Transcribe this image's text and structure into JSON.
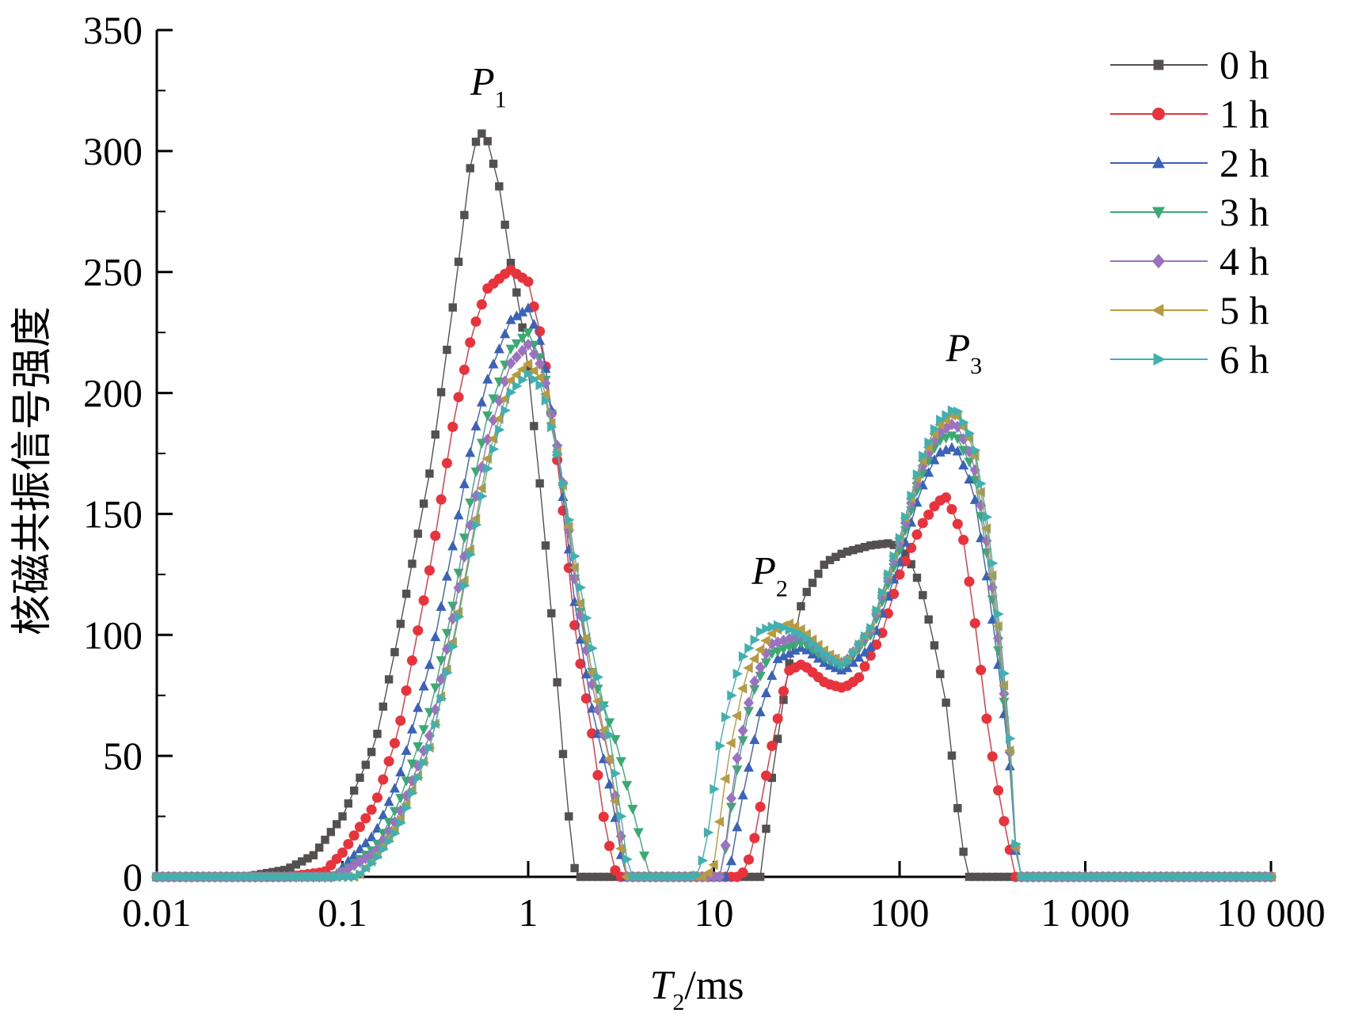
{
  "chart_data": {
    "type": "scatter",
    "xscale": "log",
    "xlim": [
      0.01,
      10000
    ],
    "ylim": [
      0,
      350
    ],
    "x_ticks": [
      0.01,
      0.1,
      1,
      10,
      100,
      1000,
      10000
    ],
    "x_tick_labels": [
      "0.01",
      "0.1",
      "1",
      "10",
      "100",
      "1 000",
      "10 000"
    ],
    "y_ticks": [
      0,
      50,
      100,
      150,
      200,
      250,
      300,
      350
    ],
    "y_tick_labels": [
      "0",
      "50",
      "100",
      "150",
      "200",
      "250",
      "300",
      "350"
    ],
    "xlabel": {
      "main": "T",
      "sub": "2",
      "suffix": "/ms"
    },
    "ylabel": "核磁共振信号强度",
    "legend_position": "top-right",
    "grid": false,
    "peaks": [
      {
        "letter": "P",
        "sub": "1",
        "x": 0.55,
        "y": 320
      },
      {
        "letter": "P",
        "sub": "2",
        "x": 18,
        "y": 118
      },
      {
        "letter": "P",
        "sub": "3",
        "x": 200,
        "y": 210
      }
    ],
    "series": [
      {
        "name": "0 h",
        "color": "#555050",
        "marker": "square",
        "points": [
          [
            0.01,
            0
          ],
          [
            0.03,
            0
          ],
          [
            0.05,
            3
          ],
          [
            0.07,
            9
          ],
          [
            0.1,
            25
          ],
          [
            0.15,
            55
          ],
          [
            0.2,
            100
          ],
          [
            0.3,
            170
          ],
          [
            0.4,
            240
          ],
          [
            0.5,
            300
          ],
          [
            0.55,
            308
          ],
          [
            0.6,
            305
          ],
          [
            0.7,
            285
          ],
          [
            0.8,
            255
          ],
          [
            0.9,
            235
          ],
          [
            1.0,
            210
          ],
          [
            1.2,
            150
          ],
          [
            1.4,
            90
          ],
          [
            1.6,
            35
          ],
          [
            1.8,
            0
          ],
          [
            3,
            0
          ],
          [
            10,
            0
          ],
          [
            16,
            0
          ],
          [
            18,
            0
          ],
          [
            20,
            35
          ],
          [
            25,
            85
          ],
          [
            30,
            115
          ],
          [
            40,
            130
          ],
          [
            50,
            134
          ],
          [
            70,
            137
          ],
          [
            90,
            138
          ],
          [
            110,
            133
          ],
          [
            130,
            120
          ],
          [
            150,
            100
          ],
          [
            180,
            70
          ],
          [
            200,
            35
          ],
          [
            230,
            0
          ],
          [
            400,
            0
          ]
        ]
      },
      {
        "name": "1 h",
        "color": "#e8323c",
        "marker": "circle",
        "points": [
          [
            0.01,
            0
          ],
          [
            0.05,
            0
          ],
          [
            0.08,
            2
          ],
          [
            0.1,
            10
          ],
          [
            0.15,
            30
          ],
          [
            0.2,
            60
          ],
          [
            0.3,
            130
          ],
          [
            0.4,
            190
          ],
          [
            0.5,
            225
          ],
          [
            0.6,
            243
          ],
          [
            0.8,
            251
          ],
          [
            1.0,
            246
          ],
          [
            1.2,
            220
          ],
          [
            1.5,
            160
          ],
          [
            1.8,
            100
          ],
          [
            2.2,
            60
          ],
          [
            2.6,
            20
          ],
          [
            3.0,
            0
          ],
          [
            10,
            0
          ],
          [
            14,
            0
          ],
          [
            16,
            10
          ],
          [
            20,
            50
          ],
          [
            25,
            85
          ],
          [
            30,
            88
          ],
          [
            40,
            80
          ],
          [
            50,
            78
          ],
          [
            60,
            82
          ],
          [
            80,
            100
          ],
          [
            100,
            125
          ],
          [
            130,
            145
          ],
          [
            160,
            155
          ],
          [
            180,
            157
          ],
          [
            220,
            140
          ],
          [
            260,
            100
          ],
          [
            300,
            60
          ],
          [
            350,
            30
          ],
          [
            420,
            0
          ],
          [
            10000,
            0
          ]
        ]
      },
      {
        "name": "2 h",
        "color": "#3a62b8",
        "marker": "triangle-up",
        "points": [
          [
            0.01,
            0
          ],
          [
            0.09,
            0
          ],
          [
            0.1,
            4
          ],
          [
            0.15,
            18
          ],
          [
            0.2,
            40
          ],
          [
            0.3,
            90
          ],
          [
            0.4,
            140
          ],
          [
            0.5,
            180
          ],
          [
            0.6,
            205
          ],
          [
            0.8,
            230
          ],
          [
            1.0,
            235
          ],
          [
            1.2,
            218
          ],
          [
            1.5,
            165
          ],
          [
            1.8,
            110
          ],
          [
            2.2,
            70
          ],
          [
            2.8,
            35
          ],
          [
            3.3,
            0
          ],
          [
            10,
            0
          ],
          [
            12,
            0
          ],
          [
            14,
            30
          ],
          [
            18,
            70
          ],
          [
            22,
            90
          ],
          [
            30,
            95
          ],
          [
            40,
            88
          ],
          [
            50,
            85
          ],
          [
            70,
            95
          ],
          [
            100,
            130
          ],
          [
            130,
            160
          ],
          [
            160,
            175
          ],
          [
            200,
            178
          ],
          [
            250,
            160
          ],
          [
            300,
            120
          ],
          [
            350,
            80
          ],
          [
            400,
            40
          ],
          [
            430,
            0
          ],
          [
            10000,
            0
          ]
        ]
      },
      {
        "name": "3 h",
        "color": "#3aaa72",
        "marker": "triangle-down",
        "points": [
          [
            0.01,
            0
          ],
          [
            0.09,
            0
          ],
          [
            0.1,
            2
          ],
          [
            0.15,
            12
          ],
          [
            0.2,
            30
          ],
          [
            0.3,
            70
          ],
          [
            0.4,
            115
          ],
          [
            0.5,
            160
          ],
          [
            0.6,
            190
          ],
          [
            0.8,
            218
          ],
          [
            1.0,
            225
          ],
          [
            1.2,
            212
          ],
          [
            1.5,
            168
          ],
          [
            1.8,
            120
          ],
          [
            2.2,
            85
          ],
          [
            3.0,
            55
          ],
          [
            3.6,
            30
          ],
          [
            4.5,
            0
          ],
          [
            10,
            0
          ],
          [
            11,
            0
          ],
          [
            13,
            40
          ],
          [
            16,
            75
          ],
          [
            20,
            92
          ],
          [
            30,
            97
          ],
          [
            40,
            90
          ],
          [
            50,
            87
          ],
          [
            70,
            100
          ],
          [
            100,
            135
          ],
          [
            130,
            165
          ],
          [
            160,
            180
          ],
          [
            200,
            183
          ],
          [
            250,
            168
          ],
          [
            300,
            130
          ],
          [
            350,
            85
          ],
          [
            400,
            45
          ],
          [
            430,
            0
          ],
          [
            10000,
            0
          ]
        ]
      },
      {
        "name": "4 h",
        "color": "#9a72c0",
        "marker": "diamond",
        "points": [
          [
            0.01,
            0
          ],
          [
            0.09,
            0
          ],
          [
            0.1,
            2
          ],
          [
            0.15,
            10
          ],
          [
            0.2,
            25
          ],
          [
            0.3,
            60
          ],
          [
            0.4,
            110
          ],
          [
            0.5,
            150
          ],
          [
            0.6,
            180
          ],
          [
            0.8,
            212
          ],
          [
            1.0,
            220
          ],
          [
            1.2,
            210
          ],
          [
            1.5,
            170
          ],
          [
            1.8,
            120
          ],
          [
            2.2,
            80
          ],
          [
            2.8,
            45
          ],
          [
            3.4,
            0
          ],
          [
            10,
            0
          ],
          [
            11,
            0
          ],
          [
            13,
            45
          ],
          [
            16,
            78
          ],
          [
            20,
            96
          ],
          [
            30,
            100
          ],
          [
            40,
            92
          ],
          [
            50,
            88
          ],
          [
            70,
            102
          ],
          [
            100,
            138
          ],
          [
            130,
            168
          ],
          [
            160,
            183
          ],
          [
            200,
            188
          ],
          [
            250,
            172
          ],
          [
            300,
            135
          ],
          [
            350,
            90
          ],
          [
            400,
            45
          ],
          [
            430,
            0
          ],
          [
            10000,
            0
          ]
        ]
      },
      {
        "name": "5 h",
        "color": "#b89a40",
        "marker": "triangle-left",
        "points": [
          [
            0.01,
            0
          ],
          [
            0.09,
            0
          ],
          [
            0.12,
            0
          ],
          [
            0.15,
            8
          ],
          [
            0.2,
            22
          ],
          [
            0.3,
            55
          ],
          [
            0.4,
            100
          ],
          [
            0.5,
            140
          ],
          [
            0.6,
            172
          ],
          [
            0.8,
            205
          ],
          [
            1.0,
            212
          ],
          [
            1.2,
            205
          ],
          [
            1.5,
            168
          ],
          [
            1.8,
            125
          ],
          [
            2.2,
            85
          ],
          [
            2.8,
            45
          ],
          [
            3.3,
            0
          ],
          [
            9,
            0
          ],
          [
            10,
            5
          ],
          [
            12,
            50
          ],
          [
            15,
            85
          ],
          [
            20,
            100
          ],
          [
            25,
            105
          ],
          [
            30,
            102
          ],
          [
            40,
            93
          ],
          [
            50,
            88
          ],
          [
            70,
            103
          ],
          [
            100,
            140
          ],
          [
            130,
            170
          ],
          [
            160,
            186
          ],
          [
            200,
            192
          ],
          [
            250,
            178
          ],
          [
            300,
            140
          ],
          [
            350,
            95
          ],
          [
            400,
            45
          ],
          [
            430,
            0
          ],
          [
            10000,
            0
          ]
        ]
      },
      {
        "name": "6 h",
        "color": "#40b0b0",
        "marker": "triangle-right",
        "points": [
          [
            0.01,
            0
          ],
          [
            0.09,
            0
          ],
          [
            0.12,
            0
          ],
          [
            0.15,
            7
          ],
          [
            0.2,
            20
          ],
          [
            0.3,
            55
          ],
          [
            0.4,
            98
          ],
          [
            0.5,
            138
          ],
          [
            0.6,
            168
          ],
          [
            0.8,
            200
          ],
          [
            1.0,
            208
          ],
          [
            1.2,
            202
          ],
          [
            1.5,
            168
          ],
          [
            1.8,
            130
          ],
          [
            2.2,
            95
          ],
          [
            2.8,
            55
          ],
          [
            3.5,
            0
          ],
          [
            8,
            0
          ],
          [
            9,
            10
          ],
          [
            11,
            60
          ],
          [
            14,
            90
          ],
          [
            18,
            102
          ],
          [
            22,
            104
          ],
          [
            30,
            100
          ],
          [
            40,
            92
          ],
          [
            50,
            87
          ],
          [
            70,
            103
          ],
          [
            100,
            140
          ],
          [
            130,
            172
          ],
          [
            160,
            188
          ],
          [
            200,
            194
          ],
          [
            250,
            180
          ],
          [
            300,
            145
          ],
          [
            350,
            100
          ],
          [
            400,
            50
          ],
          [
            430,
            0
          ],
          [
            10000,
            0
          ]
        ]
      }
    ]
  }
}
